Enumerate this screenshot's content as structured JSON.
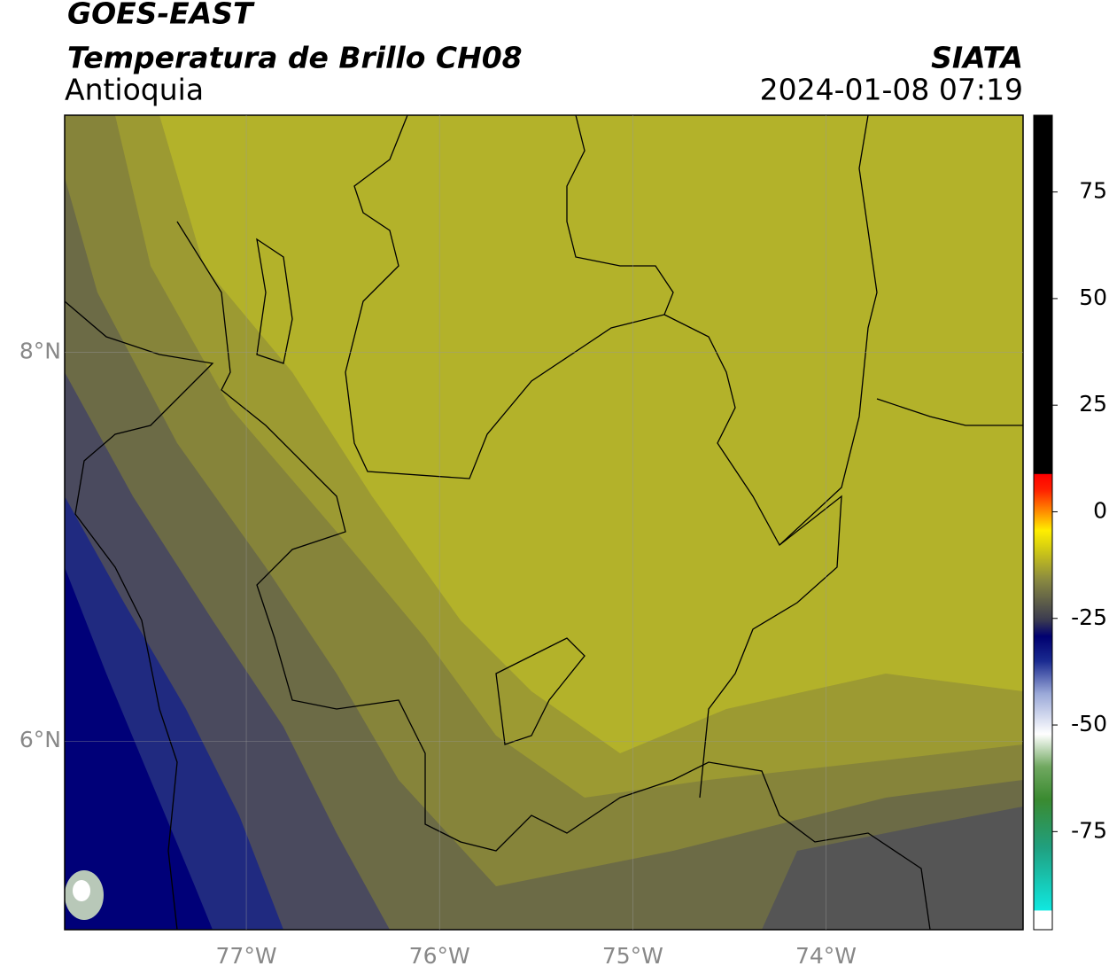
{
  "header": {
    "satellite": "GOES-EAST",
    "product": "Temperatura de Brillo CH08",
    "region": "Antioquia",
    "source": "SIATA",
    "datetime": "2024-01-08 07:19"
  },
  "map": {
    "xlim": [
      -77.94,
      -72.98
    ],
    "ylim": [
      5.03,
      9.22
    ],
    "xticks": [
      {
        "value": -77,
        "label": "77°W"
      },
      {
        "value": -76,
        "label": "76°W"
      },
      {
        "value": -75,
        "label": "75°W"
      },
      {
        "value": -74,
        "label": "74°W"
      }
    ],
    "yticks": [
      {
        "value": 8,
        "label": "8°N"
      },
      {
        "value": 6,
        "label": "6°N"
      }
    ],
    "grid": true
  },
  "colorbar": {
    "lim": [
      -98,
      93
    ],
    "ticks": [
      75,
      50,
      25,
      0,
      -25,
      -50,
      -75
    ]
  }
}
